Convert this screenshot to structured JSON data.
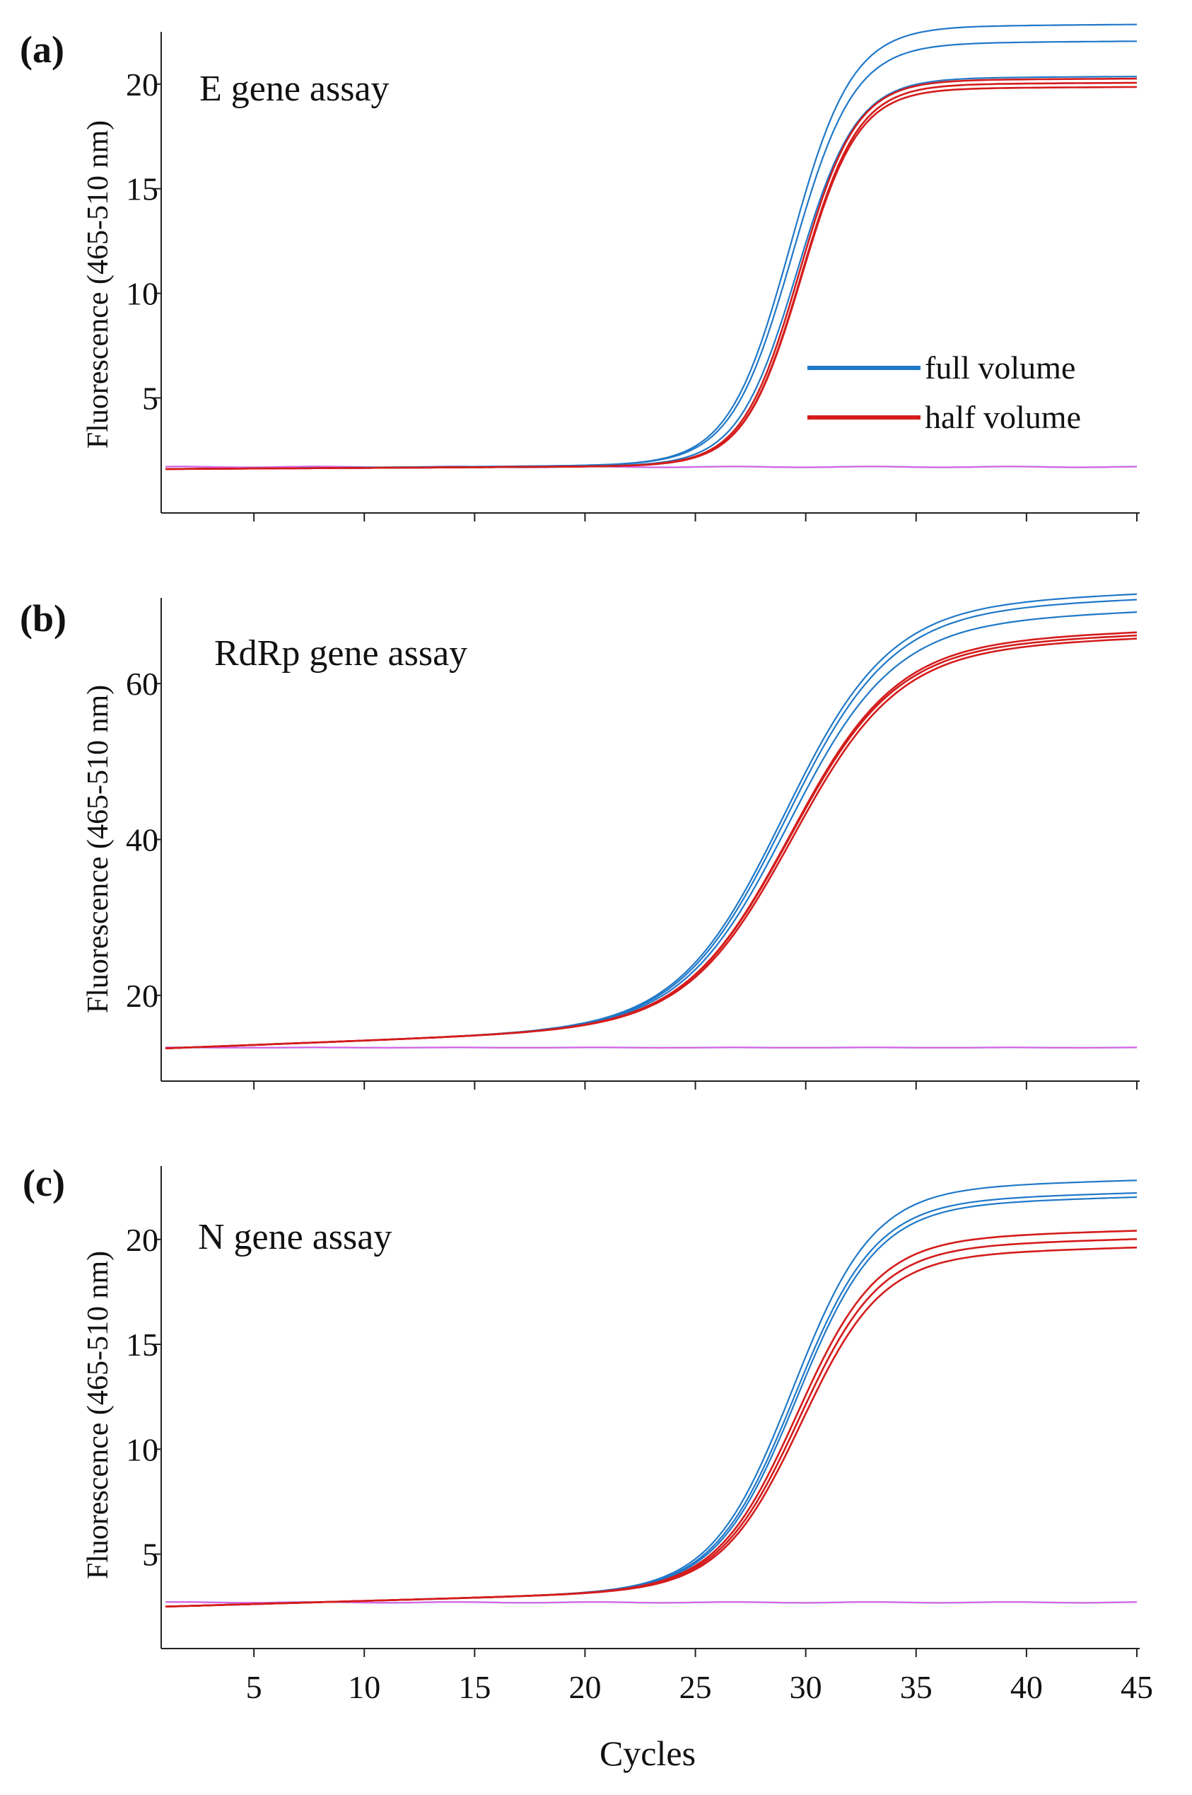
{
  "colors": {
    "full_volume": "#1f78c8",
    "half_volume": "#d41c1c",
    "negative_control": "#e85ae8",
    "negative_control_2": "#6fd0e0"
  },
  "chart_data": [
    {
      "type": "line",
      "panel_label": "(a)",
      "title": "E gene assay",
      "xlabel": "",
      "ylabel": "Fluorescence (465-510 nm)",
      "xlim": [
        0.8,
        45
      ],
      "ylim": [
        -0.5,
        22.5
      ],
      "yticks": [
        5,
        10,
        15,
        20
      ],
      "xticks": [
        5,
        10,
        15,
        20,
        25,
        30,
        35,
        40,
        45
      ],
      "show_xtick_labels": false,
      "legend": {
        "position": "right-middle",
        "entries": [
          {
            "label": "full volume",
            "color": "#1f78c8"
          },
          {
            "label": "half volume",
            "color": "#d41c1c"
          }
        ]
      },
      "baseline": 1.6,
      "negative_level": 1.7,
      "series": [
        {
          "name": "full volume",
          "group": "full",
          "plateau": 20.9,
          "midpoint": 29.3,
          "slope": 0.72,
          "drift": 0.008
        },
        {
          "name": "full volume",
          "group": "full",
          "plateau": 20.1,
          "midpoint": 29.4,
          "slope": 0.72,
          "drift": 0.008
        },
        {
          "name": "full volume",
          "group": "full",
          "plateau": 18.5,
          "midpoint": 29.6,
          "slope": 0.75,
          "drift": 0.006
        },
        {
          "name": "half volume",
          "group": "half",
          "plateau": 18.4,
          "midpoint": 29.7,
          "slope": 0.78,
          "drift": 0.006
        },
        {
          "name": "half volume",
          "group": "half",
          "plateau": 18.2,
          "midpoint": 29.8,
          "slope": 0.78,
          "drift": 0.006
        },
        {
          "name": "half volume",
          "group": "half",
          "plateau": 18.0,
          "midpoint": 29.8,
          "slope": 0.78,
          "drift": 0.006
        }
      ]
    },
    {
      "type": "line",
      "panel_label": "(b)",
      "title": "RdRp gene assay",
      "xlabel": "",
      "ylabel": "Fluorescence (465-510 nm)",
      "xlim": [
        0.8,
        45
      ],
      "ylim": [
        9,
        71
      ],
      "yticks": [
        20,
        40,
        60
      ],
      "xticks": [
        5,
        10,
        15,
        20,
        25,
        30,
        35,
        40,
        45
      ],
      "show_xtick_labels": false,
      "baseline": 13.2,
      "negative_level": 13.3,
      "series": [
        {
          "name": "full volume",
          "group": "full",
          "plateau": 53.5,
          "midpoint": 29.0,
          "slope": 0.42,
          "drift": 0.11
        },
        {
          "name": "full volume",
          "group": "full",
          "plateau": 52.8,
          "midpoint": 29.1,
          "slope": 0.42,
          "drift": 0.11
        },
        {
          "name": "full volume",
          "group": "full",
          "plateau": 51.2,
          "midpoint": 29.2,
          "slope": 0.42,
          "drift": 0.11
        },
        {
          "name": "half volume",
          "group": "half",
          "plateau": 48.6,
          "midpoint": 29.3,
          "slope": 0.42,
          "drift": 0.11
        },
        {
          "name": "half volume",
          "group": "half",
          "plateau": 48.2,
          "midpoint": 29.3,
          "slope": 0.42,
          "drift": 0.11
        },
        {
          "name": "half volume",
          "group": "half",
          "plateau": 47.8,
          "midpoint": 29.4,
          "slope": 0.42,
          "drift": 0.11
        }
      ]
    },
    {
      "type": "line",
      "panel_label": "(c)",
      "title": "N gene assay",
      "xlabel": "Cycles",
      "ylabel": "Fluorescence (465-510 nm)",
      "xlim": [
        0.8,
        45
      ],
      "ylim": [
        0.5,
        23.5
      ],
      "yticks": [
        5,
        10,
        15,
        20
      ],
      "xticks": [
        5,
        10,
        15,
        20,
        25,
        30,
        35,
        40,
        45
      ],
      "show_xtick_labels": true,
      "baseline": 2.5,
      "negative_level": 2.7,
      "series": [
        {
          "name": "full volume",
          "group": "full",
          "plateau": 19.0,
          "midpoint": 29.4,
          "slope": 0.55,
          "drift": 0.03
        },
        {
          "name": "full volume",
          "group": "full",
          "plateau": 18.4,
          "midpoint": 29.5,
          "slope": 0.55,
          "drift": 0.03
        },
        {
          "name": "full volume",
          "group": "full",
          "plateau": 18.2,
          "midpoint": 29.6,
          "slope": 0.55,
          "drift": 0.03
        },
        {
          "name": "half volume",
          "group": "half",
          "plateau": 16.6,
          "midpoint": 29.6,
          "slope": 0.55,
          "drift": 0.03
        },
        {
          "name": "half volume",
          "group": "half",
          "plateau": 16.2,
          "midpoint": 29.7,
          "slope": 0.55,
          "drift": 0.03
        },
        {
          "name": "half volume",
          "group": "half",
          "plateau": 15.8,
          "midpoint": 29.8,
          "slope": 0.55,
          "drift": 0.03
        }
      ]
    }
  ]
}
